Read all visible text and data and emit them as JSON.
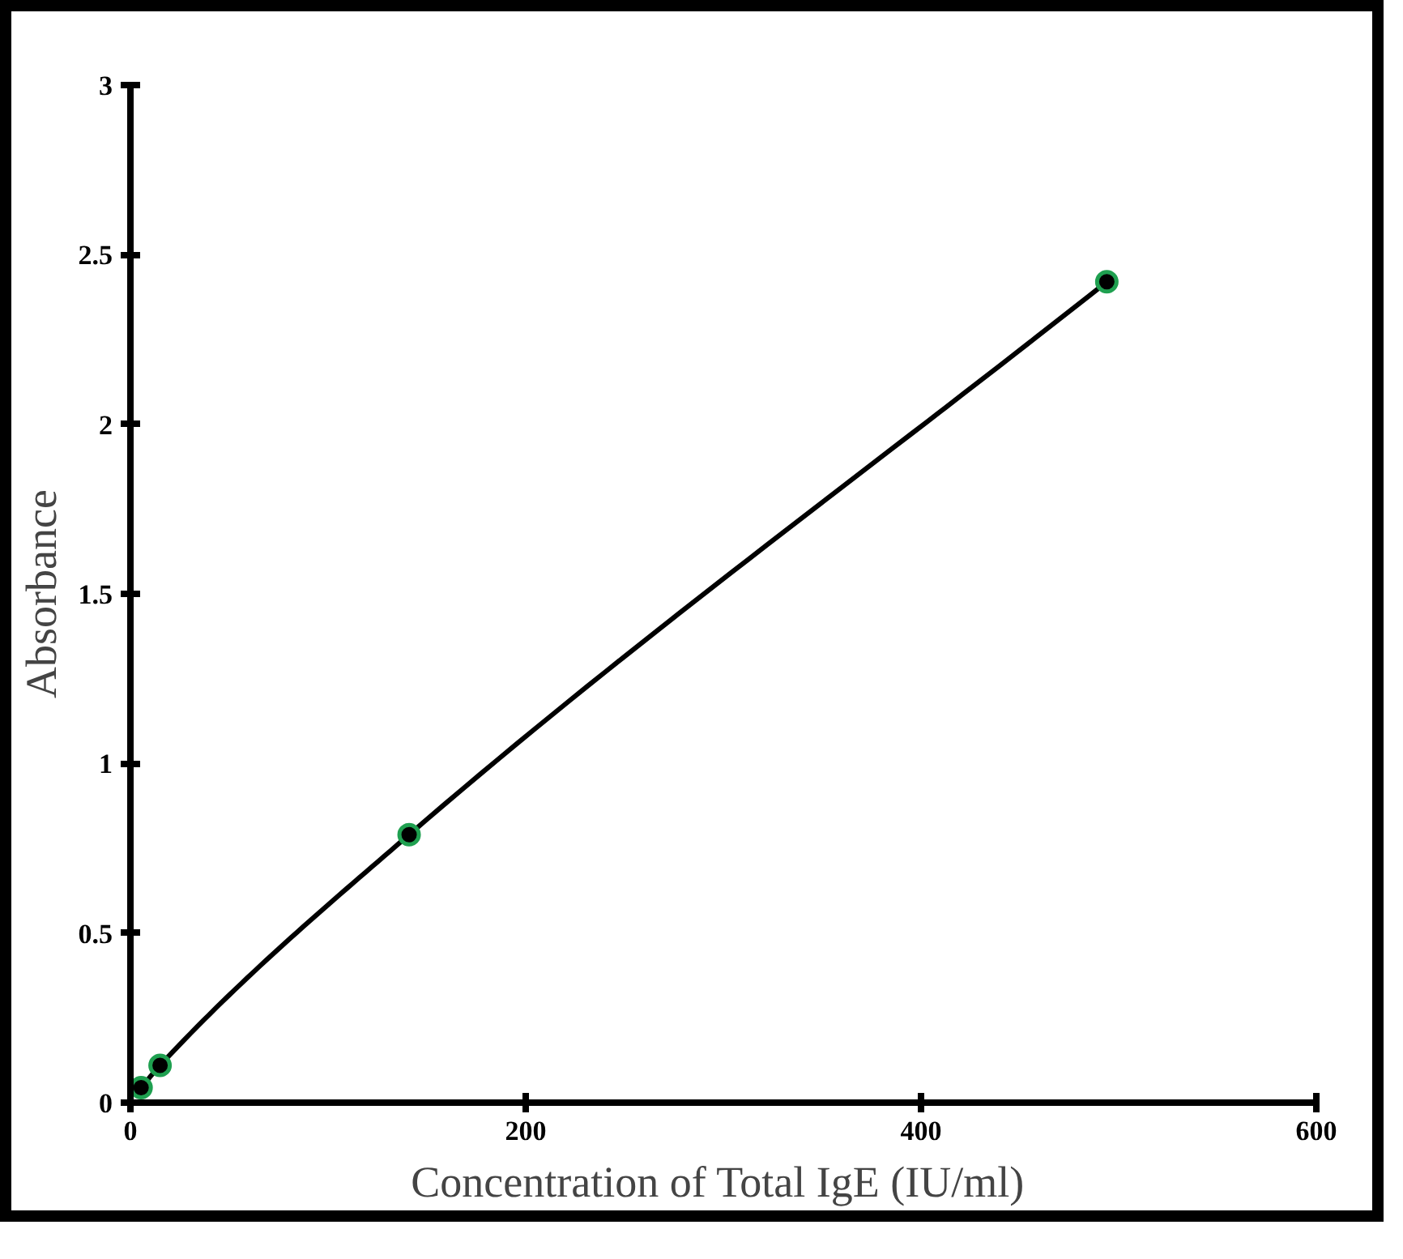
{
  "chart_data": {
    "type": "line",
    "xlabel": "Concentration  of Total IgE (IU/ml)",
    "ylabel": "Absorbance",
    "series": [
      {
        "color": "#000000",
        "x": [
          5.4,
          15,
          141,
          494
        ],
        "values": [
          0.044,
          0.11,
          0.79,
          2.42
        ]
      }
    ],
    "marker": "circle",
    "line_style": "solid",
    "grid": false,
    "xlim": [
      0,
      600
    ],
    "xticks": [
      0,
      200,
      400,
      600
    ],
    "ylim": [
      0,
      3
    ],
    "yticks": [
      0,
      0.5,
      1,
      1.5,
      2,
      2.5,
      3
    ]
  }
}
